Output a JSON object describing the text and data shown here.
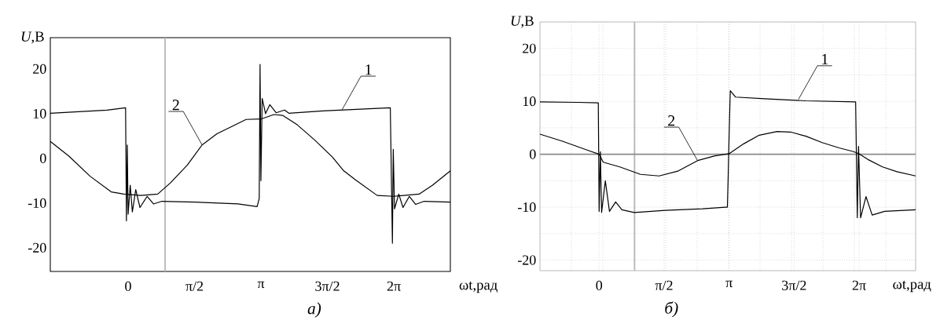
{
  "chart_data": [
    {
      "type": "line",
      "title": "а)",
      "xlabel": "ωt,рад",
      "ylabel": "*U*,В",
      "xlim": [
        -1.84,
        7.62
      ],
      "ylim": [
        -25.3,
        27
      ],
      "xticks": [
        {
          "value": 0,
          "label": "0"
        },
        {
          "value": 1.5708,
          "label": "π/2"
        },
        {
          "value": 3.1416,
          "label": "π"
        },
        {
          "value": 4.7124,
          "label": "3π/2"
        },
        {
          "value": 6.2832,
          "label": "2π"
        }
      ],
      "yticks": [
        -20,
        -10,
        0,
        10,
        20
      ],
      "ref_lines": [
        {
          "axis": "x",
          "value": 0.874,
          "color": "#b4b4b4"
        }
      ],
      "series": [
        {
          "color": "#000000",
          "x": [
            -1.84,
            -0.5,
            -0.06,
            -0.04,
            -0.02,
            0.0,
            0.05,
            0.1,
            0.18,
            0.28,
            0.45,
            0.6,
            0.8,
            1.6,
            2.6,
            3.05,
            3.1,
            3.12,
            3.14,
            3.17,
            3.25,
            3.35,
            3.5,
            3.7,
            3.8,
            4.6,
            6.2,
            6.25,
            6.27,
            6.3,
            6.4,
            6.5,
            6.65,
            6.8,
            7.0,
            7.62
          ],
          "values": [
            10.1,
            10.8,
            11.3,
            -14,
            3,
            -12.5,
            -6,
            -12,
            -7,
            -11,
            -8.5,
            -10.2,
            -9.6,
            -9.8,
            -10.2,
            -10.8,
            -9,
            21,
            -5,
            13.4,
            10,
            12,
            10.2,
            10.8,
            10.1,
            10.6,
            11.3,
            -19,
            2,
            -11.3,
            -8,
            -11,
            -8.5,
            -10.3,
            -9.6,
            -9.8
          ]
        },
        {
          "color": "#000000",
          "x": [
            -1.84,
            -1.4,
            -0.9,
            -0.4,
            -0.1,
            0.3,
            0.7,
            1.0,
            1.4,
            1.75,
            2.1,
            2.49,
            2.79,
            3.14,
            3.45,
            3.66,
            4.0,
            4.4,
            4.83,
            5.1,
            5.39,
            5.89,
            6.28,
            6.88,
            7.2,
            7.62
          ],
          "values": [
            3.8,
            0.5,
            -4,
            -7.5,
            -8,
            -8.3,
            -8,
            -5.5,
            -1.5,
            3,
            5.5,
            7.3,
            8.7,
            8.8,
            9.8,
            9.6,
            7.5,
            4.2,
            0.3,
            -2.8,
            -4.9,
            -8.3,
            -8.5,
            -8,
            -6,
            -2.8
          ]
        }
      ],
      "annotations": [
        {
          "text": "1",
          "x": 5.06,
          "y": 10.9
        },
        {
          "text": "2",
          "x": 1.75,
          "y": 3
        }
      ]
    },
    {
      "type": "line",
      "title": "б)",
      "xlabel": "ωt,рад",
      "ylabel": "*U*,В",
      "xlim": [
        -1.43,
        7.65
      ],
      "ylim": [
        -22,
        25
      ],
      "grid": true,
      "xticks": [
        {
          "value": -0.67,
          "label": null
        },
        {
          "value": 0,
          "label": "0"
        },
        {
          "value": 0.09,
          "label": null
        },
        {
          "value": 0.85,
          "label": null
        },
        {
          "value": 1.5708,
          "label": "π/2"
        },
        {
          "value": 1.61,
          "label": null
        },
        {
          "value": 2.37,
          "label": null
        },
        {
          "value": 3.13,
          "label": null
        },
        {
          "value": 3.1416,
          "label": "π"
        },
        {
          "value": 3.89,
          "label": null
        },
        {
          "value": 4.65,
          "label": null
        },
        {
          "value": 4.7124,
          "label": "3π/2"
        },
        {
          "value": 5.41,
          "label": null
        },
        {
          "value": 6.17,
          "label": null
        },
        {
          "value": 6.2832,
          "label": "2π"
        },
        {
          "value": 6.93,
          "label": null
        }
      ],
      "yticks": [
        -20,
        {
          "value": -15,
          "label": null
        },
        -10,
        {
          "value": -5,
          "label": null
        },
        0,
        {
          "value": 5,
          "label": null
        },
        10,
        {
          "value": 15,
          "label": null
        },
        20
      ],
      "ref_lines": [
        {
          "axis": "x",
          "value": 0.857,
          "color": "#b4b4b4"
        },
        {
          "axis": "y",
          "value": 0,
          "color": "#8c8c8c"
        }
      ],
      "series": [
        {
          "color": "#000000",
          "x": [
            -1.43,
            -0.5,
            -0.02,
            0.0,
            0.03,
            0.06,
            0.15,
            0.25,
            0.4,
            0.55,
            0.85,
            1.6,
            2.5,
            3.05,
            3.1,
            3.12,
            3.14,
            3.17,
            3.3,
            4.0,
            5.0,
            6.2,
            6.24,
            6.27,
            6.32,
            6.45,
            6.6,
            6.9,
            7.65
          ],
          "values": [
            9.9,
            9.8,
            9.7,
            -10.8,
            0.5,
            -11,
            -5,
            -10.8,
            -9,
            -10.5,
            -11,
            -10.6,
            -10.3,
            -10,
            -10,
            -4,
            3,
            12,
            10.8,
            10.5,
            10.1,
            9.9,
            -12,
            1.5,
            -12,
            -8,
            -11.5,
            -10.8,
            -10.5
          ]
        },
        {
          "color": "#000000",
          "x": [
            -1.43,
            -0.9,
            -0.29,
            0,
            0.1,
            0.5,
            1.0,
            1.45,
            1.9,
            2.38,
            2.8,
            3.14,
            3.5,
            3.87,
            4.3,
            4.63,
            5.0,
            5.39,
            5.8,
            6.15,
            6.28,
            6.5,
            6.85,
            7.2,
            7.65
          ],
          "values": [
            3.8,
            2.5,
            0.8,
            0,
            -1.5,
            -2.4,
            -3.8,
            -4.1,
            -3.2,
            -1.2,
            -0.3,
            0.1,
            2,
            3.6,
            4.3,
            4.2,
            3.4,
            2.2,
            1.2,
            0.5,
            0.1,
            -1,
            -2.4,
            -3.3,
            -4.1
          ]
        }
      ],
      "annotations": [
        {
          "text": "1",
          "x": 4.82,
          "y": 10.4
        },
        {
          "text": "2",
          "x": 2.38,
          "y": -1.2
        }
      ]
    }
  ]
}
